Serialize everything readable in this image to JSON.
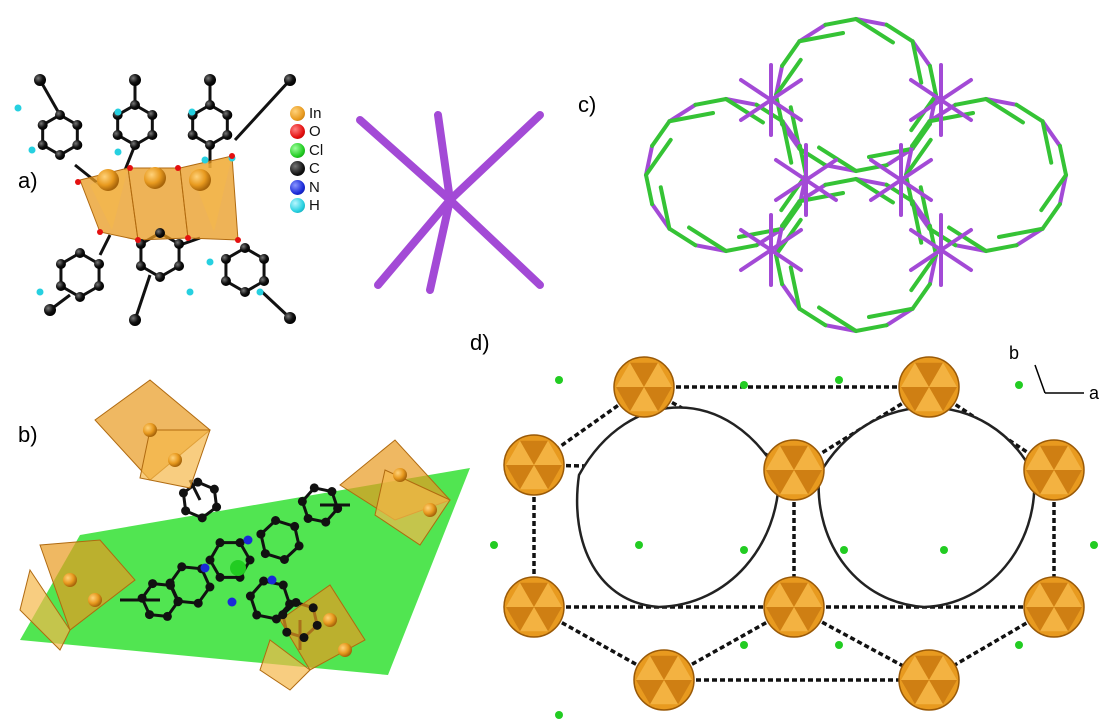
{
  "panels": {
    "a": "a)",
    "b": "b)",
    "c": "c)",
    "d": "d)"
  },
  "legend": [
    {
      "label": "In",
      "color": "#e89a1f"
    },
    {
      "label": "O",
      "color": "#e41010"
    },
    {
      "label": "Cl",
      "color": "#22cc22"
    },
    {
      "label": "C",
      "color": "#111111"
    },
    {
      "label": "N",
      "color": "#1a2ad8"
    },
    {
      "label": "H",
      "color": "#26d0e0"
    }
  ],
  "axes": {
    "b": "b",
    "a": "a"
  },
  "colors": {
    "indium": "#e89a1f",
    "node": "#a34ad6",
    "linker": "#35c335",
    "plane": "#33e033",
    "carbon": "#111111"
  }
}
